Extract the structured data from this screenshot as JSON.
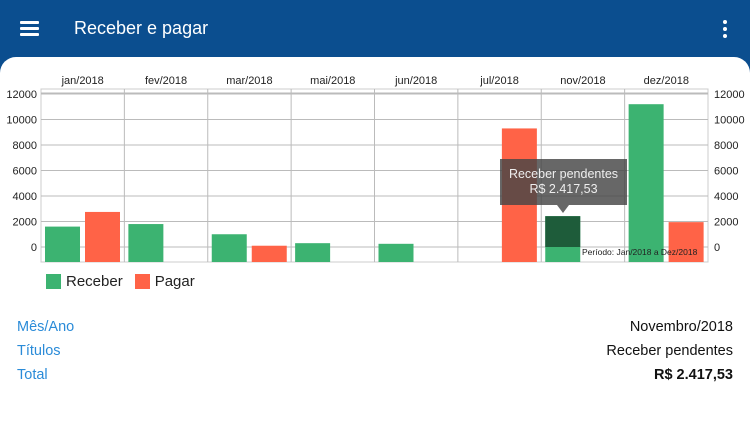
{
  "appbar": {
    "title": "Receber e pagar",
    "menu_icon": "hamburger-menu-icon",
    "more_icon": "more-vertical-icon"
  },
  "chart_data": {
    "type": "bar",
    "categories": [
      "jan/2018",
      "fev/2018",
      "mar/2018",
      "mai/2018",
      "jun/2018",
      "jul/2018",
      "nov/2018",
      "dez/2018"
    ],
    "series": [
      {
        "name": "Receber",
        "color": "#3cb371",
        "values": [
          1600,
          1800,
          1000,
          300,
          250,
          null,
          2417.53,
          11200
        ]
      },
      {
        "name": "Pagar",
        "color": "#ff6347",
        "values": [
          2750,
          null,
          100,
          null,
          null,
          9300,
          null,
          1950
        ]
      }
    ],
    "yticks": [
      0,
      2000,
      4000,
      6000,
      8000,
      10000,
      12000
    ],
    "ylim": [
      -1100,
      12000
    ],
    "axes": "left-and-right",
    "xaxis_position": "top",
    "grid": true,
    "legend": "bottom-left",
    "highlighted": {
      "series": "Receber",
      "category": "nov/2018",
      "color": "#1e5c3a"
    },
    "annotation": "Período: Jan/2018 a Dez/2018"
  },
  "tooltip": {
    "line1": "Receber pendentes",
    "line2": "R$ 2.417,53"
  },
  "details": [
    {
      "label": "Mês/Ano",
      "value": "Novembro/2018"
    },
    {
      "label": "Títulos",
      "value": "Receber pendentes"
    },
    {
      "label": "Total",
      "value": "R$ 2.417,53"
    }
  ]
}
